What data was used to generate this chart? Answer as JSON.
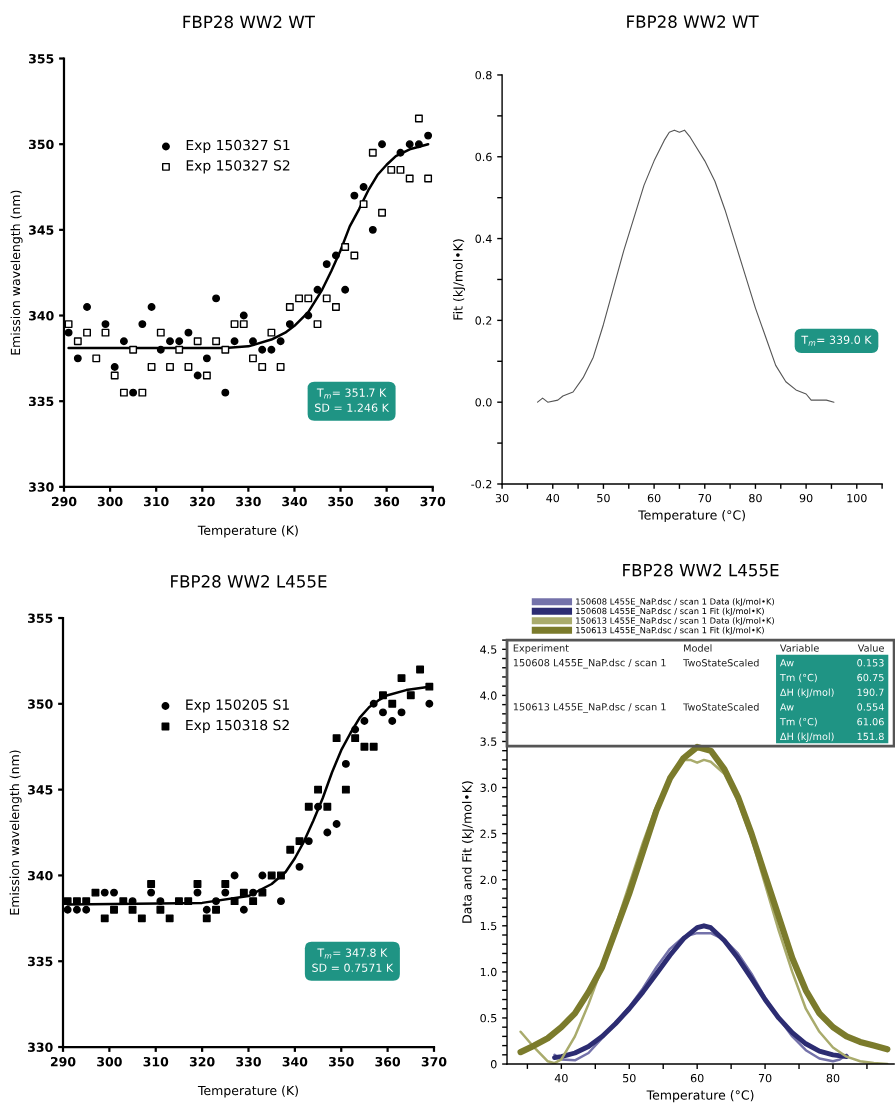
{
  "chart_data": [
    {
      "type": "scatter",
      "title": "FBP28 WW2 WT",
      "xlabel": "Temperature (K)",
      "ylabel": "Emission wavelength (nm)",
      "xlim": [
        290,
        370
      ],
      "ylim": [
        330,
        355
      ],
      "xticks": [
        290,
        300,
        310,
        320,
        330,
        340,
        350,
        360,
        370
      ],
      "yticks": [
        330,
        335,
        340,
        345,
        350,
        355
      ],
      "legend": "top left",
      "annotations": [
        "T$_{m}$= 351.7 K\nSD = 1.246 K"
      ],
      "series": [
        {
          "name": "Exp 150327 S1",
          "type": "scatter",
          "marker": "circle",
          "color": "#000000",
          "x": [
            291,
            293,
            295,
            297,
            299,
            301,
            303,
            305,
            307,
            309,
            311,
            313,
            315,
            317,
            319,
            321,
            323,
            325,
            327,
            329,
            331,
            333,
            335,
            337,
            339,
            341,
            343,
            345,
            347,
            349,
            351,
            353,
            355,
            357,
            359,
            361,
            363,
            365,
            367,
            369
          ],
          "values": [
            339,
            337.5,
            340.5,
            null,
            339.5,
            337,
            338.5,
            335.5,
            339.5,
            340.5,
            338,
            338.5,
            338.5,
            339,
            336.5,
            337.5,
            341,
            335.5,
            338.5,
            340,
            338.5,
            338,
            338,
            338.5,
            339.5,
            null,
            340,
            341.5,
            343,
            343.5,
            341.5,
            347,
            347.5,
            345,
            350,
            null,
            349.5,
            350,
            350,
            350.5
          ]
        },
        {
          "name": "Exp 150327 S2",
          "type": "scatter",
          "marker": "square",
          "color": "#000000",
          "x": [
            291,
            293,
            295,
            297,
            299,
            301,
            303,
            305,
            307,
            309,
            311,
            313,
            315,
            317,
            319,
            321,
            323,
            325,
            327,
            329,
            331,
            333,
            335,
            337,
            339,
            341,
            343,
            345,
            347,
            349,
            351,
            353,
            355,
            357,
            359,
            361,
            363,
            365,
            367,
            369
          ],
          "values": [
            339.5,
            338.5,
            339,
            337.5,
            339,
            336.5,
            335.5,
            338,
            335.5,
            337,
            339,
            337,
            338,
            337,
            338.5,
            336.5,
            338.5,
            338,
            339.5,
            339.5,
            337.5,
            337,
            339,
            337,
            340.5,
            341,
            341,
            339.5,
            341,
            340.5,
            344,
            343.5,
            346.5,
            349.5,
            346,
            348.5,
            348.5,
            348,
            351.5,
            348
          ]
        },
        {
          "type": "line",
          "color": "#000000",
          "x": [
            291,
            310,
            325,
            330,
            335,
            338,
            340,
            343,
            346,
            348,
            350,
            352,
            354,
            356,
            358,
            360,
            362,
            365,
            369
          ],
          "values": [
            338.1,
            338.1,
            338.1,
            338.2,
            338.6,
            339,
            339.4,
            340.2,
            341.5,
            342.6,
            343.8,
            345.2,
            346.2,
            347.3,
            348.2,
            348.8,
            349.3,
            349.7,
            350
          ]
        }
      ]
    },
    {
      "type": "line",
      "title": "FBP28 WW2 WT",
      "xlabel": "Temperature (°C)",
      "ylabel": "Fit (kJ/mol•K)",
      "xlim": [
        30,
        105
      ],
      "ylim": [
        -0.2,
        0.8
      ],
      "xticks": [
        30,
        {
          "value": 35,
          "label": null
        },
        40,
        {
          "value": 45,
          "label": null
        },
        50,
        {
          "value": 55,
          "label": null
        },
        60,
        {
          "value": 65,
          "label": null
        },
        70,
        {
          "value": 75,
          "label": null
        },
        80,
        {
          "value": 85,
          "label": null
        },
        90,
        {
          "value": 95,
          "label": null
        },
        100,
        {
          "value": 105,
          "label": null
        }
      ],
      "yticks": [
        {
          "value": -0.2,
          "label": "-0.2"
        },
        {
          "value": -0.1,
          "label": null
        },
        {
          "value": 0,
          "label": "0.0"
        },
        {
          "value": 0.1,
          "label": null
        },
        {
          "value": 0.2,
          "label": "0.2"
        },
        {
          "value": 0.3,
          "label": null
        },
        {
          "value": 0.4,
          "label": "0.4"
        },
        {
          "value": 0.5,
          "label": null
        },
        {
          "value": 0.6,
          "label": "0.6"
        },
        {
          "value": 0.7,
          "label": null
        },
        {
          "value": 0.8,
          "label": "0.8"
        }
      ],
      "annotations": [
        "T$_{m}$= 339.0 K"
      ],
      "series": [
        {
          "color": "#555555",
          "x": [
            37,
            38,
            39,
            41,
            42,
            44,
            46,
            48,
            50,
            52,
            54,
            56,
            58,
            60,
            62,
            63,
            64,
            65,
            66,
            67,
            68,
            70,
            72,
            74,
            76,
            78,
            80,
            82,
            84,
            86,
            88,
            90,
            91,
            92,
            94,
            95.5
          ],
          "values": [
            0,
            0.01,
            0,
            0.005,
            0.015,
            0.025,
            0.06,
            0.11,
            0.19,
            0.28,
            0.37,
            0.45,
            0.53,
            0.59,
            0.64,
            0.66,
            0.665,
            0.66,
            0.665,
            0.65,
            0.63,
            0.59,
            0.54,
            0.47,
            0.39,
            0.31,
            0.23,
            0.16,
            0.09,
            0.05,
            0.03,
            0.02,
            0.005,
            0.005,
            0.005,
            0
          ]
        }
      ]
    },
    {
      "type": "scatter",
      "title": "FBP28 WW2 L455E",
      "xlabel": "Temperature (K)",
      "ylabel": "Emission wavelength (nm)",
      "xlim": [
        290,
        370
      ],
      "ylim": [
        330,
        355
      ],
      "xticks": [
        290,
        300,
        310,
        320,
        330,
        340,
        350,
        360,
        370
      ],
      "yticks": [
        330,
        335,
        340,
        345,
        350,
        355
      ],
      "legend": "top left",
      "annotations": [
        "T$_{m}$= 347.8 K\nSD = 0.7571 K"
      ],
      "series": [
        {
          "name": "Exp 150205 S1",
          "type": "scatter",
          "marker": "circle",
          "color": "#000000",
          "x": [
            291,
            293,
            295,
            299,
            301,
            305,
            309,
            311,
            319,
            321,
            323,
            325,
            327,
            329,
            331,
            333,
            337,
            341,
            343,
            345,
            347,
            349,
            351,
            353,
            355,
            357,
            359,
            361,
            363,
            369
          ],
          "values": [
            338,
            338,
            338,
            339,
            339,
            338.5,
            339,
            338.5,
            339,
            338,
            338.5,
            339,
            340,
            338,
            339,
            340,
            338.5,
            340.5,
            342,
            344,
            342.5,
            343,
            346.5,
            348.5,
            349,
            350,
            349.5,
            349,
            349.5,
            350
          ]
        },
        {
          "name": "Exp 150318 S2",
          "type": "scatter",
          "marker": "square",
          "color": "#000000",
          "x": [
            291,
            293,
            295,
            297,
            299,
            301,
            303,
            305,
            307,
            309,
            311,
            313,
            315,
            317,
            319,
            321,
            323,
            325,
            327,
            329,
            331,
            333,
            335,
            337,
            339,
            341,
            343,
            345,
            347,
            349,
            351,
            353,
            355,
            357,
            359,
            361,
            363,
            365,
            367,
            369
          ],
          "values": [
            338.5,
            338.5,
            338.5,
            339,
            337.5,
            338,
            338.5,
            338,
            337.5,
            339.5,
            338,
            337.5,
            338.5,
            338.5,
            339.5,
            337.5,
            338,
            339.5,
            338.5,
            339,
            338.5,
            339,
            340,
            340,
            341.5,
            342,
            344,
            345,
            344,
            348,
            345,
            348,
            347.5,
            347.5,
            350.5,
            350,
            351.5,
            350.5,
            352,
            351
          ]
        },
        {
          "type": "line",
          "color": "#000000",
          "x": [
            291,
            320,
            330,
            335,
            338,
            340,
            342,
            344,
            346,
            348,
            350,
            352,
            354,
            356,
            358,
            360,
            364,
            369
          ],
          "values": [
            338.3,
            338.4,
            338.8,
            339.5,
            340.2,
            341,
            342,
            343.2,
            344.5,
            346,
            347.3,
            348.3,
            349.2,
            349.8,
            350.2,
            350.5,
            350.8,
            351
          ]
        }
      ]
    },
    {
      "type": "line",
      "title": "FBP28 WW2 L455E",
      "xlabel": "Temperature (°C)",
      "ylabel": "Data and Fit (kJ/mol•K)",
      "xlim": [
        32,
        89
      ],
      "ylim": [
        0,
        4.6
      ],
      "legend": "top",
      "xticks": [
        {
          "value": 35,
          "label": null
        },
        40,
        {
          "value": 45,
          "label": null
        },
        50,
        {
          "value": 55,
          "label": null
        },
        60,
        {
          "value": 65,
          "label": null
        },
        70,
        {
          "value": 75,
          "label": null
        },
        80,
        {
          "value": 85,
          "label": null
        }
      ],
      "yticks": [
        0,
        {
          "value": 0.1,
          "label": null
        },
        {
          "value": 0.2,
          "label": null
        },
        {
          "value": 0.3,
          "label": null
        },
        {
          "value": 0.4,
          "label": null
        },
        0.5,
        {
          "value": 0.6,
          "label": null
        },
        {
          "value": 0.7,
          "label": null
        },
        {
          "value": 0.8,
          "label": null
        },
        {
          "value": 0.9,
          "label": null
        },
        {
          "value": 1,
          "label": "1.0"
        },
        {
          "value": 1.1,
          "label": null
        },
        {
          "value": 1.2,
          "label": null
        },
        {
          "value": 1.3,
          "label": null
        },
        {
          "value": 1.4,
          "label": null
        },
        1.5,
        {
          "value": 1.6,
          "label": null
        },
        {
          "value": 1.7,
          "label": null
        },
        {
          "value": 1.8,
          "label": null
        },
        {
          "value": 1.9,
          "label": null
        },
        {
          "value": 2,
          "label": "2.0"
        },
        {
          "value": 2.1,
          "label": null
        },
        {
          "value": 2.2,
          "label": null
        },
        {
          "value": 2.3,
          "label": null
        },
        {
          "value": 2.4,
          "label": null
        },
        2.5,
        {
          "value": 2.6,
          "label": null
        },
        {
          "value": 2.7,
          "label": null
        },
        {
          "value": 2.8,
          "label": null
        },
        {
          "value": 2.9,
          "label": null
        },
        {
          "value": 3,
          "label": "3.0"
        },
        {
          "value": 3.1,
          "label": null
        },
        {
          "value": 3.2,
          "label": null
        },
        {
          "value": 3.3,
          "label": null
        },
        {
          "value": 3.4,
          "label": null
        },
        3.5,
        {
          "value": 3.6,
          "label": null
        },
        {
          "value": 3.7,
          "label": null
        },
        {
          "value": 3.8,
          "label": null
        },
        {
          "value": 3.9,
          "label": null
        },
        {
          "value": 4,
          "label": "4.0"
        },
        {
          "value": 4.1,
          "label": null
        },
        {
          "value": 4.2,
          "label": null
        },
        {
          "value": 4.3,
          "label": null
        },
        {
          "value": 4.4,
          "label": null
        },
        4.5,
        {
          "value": 4.6,
          "label": null
        }
      ],
      "annotations": [
        "Experiment",
        "Model",
        "Variable",
        "Value",
        "150608 L455E_NaP.dsc / scan 1",
        "TwoStateScaled",
        "Aw",
        "0.153",
        "Tm (°C)",
        "60.75",
        "ΔH (kJ/mol)",
        "190.7",
        "150613 L455E_NaP.dsc / scan 1",
        "TwoStateScaled",
        "Aw",
        "0.554",
        "Tm (°C)",
        "61.06",
        "ΔH (kJ/mol)",
        "151.8"
      ],
      "series": [
        {
          "name": "150608 L455E_NaP.dsc / scan 1 Data (kJ/mol•K)",
          "color": "#7472aa",
          "x": [
            39,
            40,
            42,
            44,
            46,
            48,
            50,
            52,
            54,
            56,
            58,
            60,
            62,
            64,
            66,
            68,
            70,
            72,
            74,
            76,
            78,
            80,
            81,
            82
          ],
          "values": [
            0.1,
            0.05,
            0.04,
            0.12,
            0.28,
            0.45,
            0.62,
            0.82,
            1.05,
            1.25,
            1.38,
            1.42,
            1.42,
            1.35,
            1.2,
            0.98,
            0.72,
            0.5,
            0.3,
            0.15,
            0.06,
            0.03,
            0.05,
            0.1
          ]
        },
        {
          "name": "150608 L455E_NaP.dsc / scan 1 Fit (kJ/mol•K)",
          "color": "#2c2c72",
          "x": [
            39,
            40,
            42,
            44,
            46,
            48,
            50,
            52,
            54,
            56,
            58,
            60,
            61,
            62,
            64,
            66,
            68,
            70,
            72,
            74,
            76,
            78,
            80,
            82
          ],
          "values": [
            0.07,
            0.08,
            0.12,
            0.19,
            0.3,
            0.44,
            0.6,
            0.78,
            0.98,
            1.18,
            1.36,
            1.48,
            1.5,
            1.48,
            1.34,
            1.15,
            0.93,
            0.7,
            0.5,
            0.34,
            0.22,
            0.14,
            0.1,
            0.08
          ]
        },
        {
          "name": "150613 L455E_NaP.dsc / scan 1 Data (kJ/mol•K)",
          "color": "#a9ab6c",
          "x": [
            34,
            36,
            38,
            39,
            40,
            42,
            44,
            46,
            48,
            50,
            52,
            54,
            56,
            58,
            59,
            60,
            61,
            62,
            64,
            66,
            68,
            70,
            72,
            74,
            76,
            78,
            80,
            82,
            84,
            86,
            88
          ],
          "values": [
            0.35,
            0.18,
            0.03,
            0.01,
            0.05,
            0.3,
            0.65,
            1.05,
            1.5,
            1.95,
            2.4,
            2.8,
            3.1,
            3.3,
            3.3,
            3.27,
            3.3,
            3.28,
            3.15,
            2.85,
            2.45,
            1.95,
            1.45,
            1.0,
            0.6,
            0.35,
            0.18,
            0.08,
            0.03,
            0.01,
            0
          ]
        },
        {
          "name": "150613 L455E_NaP.dsc / scan 1 Fit (kJ/mol•K)",
          "color": "#7b7b2c",
          "x": [
            34,
            36,
            38,
            40,
            42,
            44,
            46,
            48,
            50,
            52,
            54,
            56,
            58,
            60,
            62,
            64,
            66,
            68,
            70,
            72,
            74,
            76,
            78,
            80,
            82,
            84,
            86,
            88
          ],
          "values": [
            0.13,
            0.2,
            0.28,
            0.4,
            0.55,
            0.78,
            1.05,
            1.45,
            1.85,
            2.3,
            2.75,
            3.1,
            3.32,
            3.44,
            3.4,
            3.2,
            2.9,
            2.5,
            2.05,
            1.6,
            1.15,
            0.8,
            0.55,
            0.4,
            0.3,
            0.24,
            0.2,
            0.16
          ]
        }
      ]
    }
  ]
}
